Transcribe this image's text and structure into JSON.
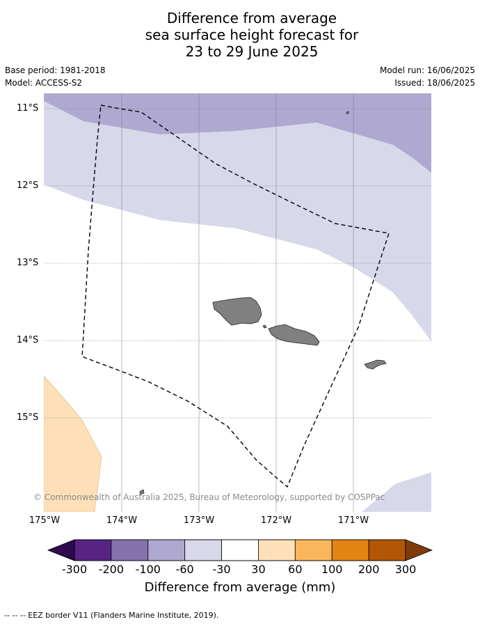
{
  "title_lines": [
    "Difference from average",
    "sea surface height forecast for",
    "23 to 29 June 2025"
  ],
  "meta": {
    "base_period": "Base period: 1981-2018",
    "model": "Model: ACCESS-S2",
    "model_run": "Model run: 16/06/2025",
    "issued": "Issued: 18/06/2025"
  },
  "map": {
    "lon_range": [
      -175.0,
      -170.0
    ],
    "lat_range": [
      -16.2,
      -10.8
    ],
    "lat_labels": [
      "11°S",
      "12°S",
      "13°S",
      "14°S",
      "15°S"
    ],
    "lon_labels": [
      "175°W",
      "174°W",
      "173°W",
      "172°W",
      "171°W"
    ],
    "legend_items": [
      "EEZ border"
    ],
    "land_color": "#808080",
    "regions": [
      {
        "name": "-100 to -60 mm",
        "color": "#afa9d1"
      },
      {
        "name": "-60 to -30 mm",
        "color": "#d7d8ea"
      },
      {
        "name": "30 to 60 mm",
        "color": "#fde0b7"
      }
    ]
  },
  "copyright": "© Commonwealth of Australia 2025, Bureau of Meteorology, supported by COSPPac",
  "colorbar": {
    "ticks": [
      "-300",
      "-200",
      "-100",
      "-60",
      "-30",
      "30",
      "60",
      "100",
      "200",
      "300"
    ],
    "colors": [
      "#572483",
      "#8473ac",
      "#afa9d1",
      "#d7d8ea",
      "#ffffff",
      "#fde0b7",
      "#fbb65c",
      "#e38413",
      "#b15706"
    ],
    "under_color": "#2e0a4f",
    "over_color": "#7f3c0a",
    "label": "Difference from average (mm)"
  },
  "footnote": "--  --  -- EEZ border V11 (Flanders Marine Institute, 2019)."
}
